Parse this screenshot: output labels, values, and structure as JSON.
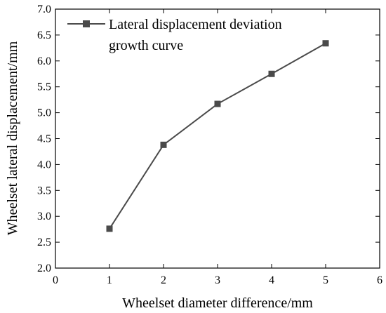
{
  "chart_data": {
    "type": "line",
    "title": "",
    "xlabel": "Wheelset diameter difference/mm",
    "ylabel": "Wheelset lateral displacement/mm",
    "xlim": [
      0,
      6
    ],
    "ylim": [
      2.0,
      7.0
    ],
    "x_ticks": [
      "0",
      "1",
      "2",
      "3",
      "4",
      "5",
      "6"
    ],
    "y_ticks": [
      "2.0",
      "2.5",
      "3.0",
      "3.5",
      "4.0",
      "4.5",
      "5.0",
      "5.5",
      "6.0",
      "6.5",
      "7.0"
    ],
    "grid": false,
    "legend_position": "top-left",
    "series": [
      {
        "name_line1": "Lateral displacement deviation",
        "name_line2": "growth curve",
        "color": "#4a4a4a",
        "marker": "square",
        "x": [
          1,
          2,
          3,
          4,
          5
        ],
        "y": [
          2.76,
          4.38,
          5.17,
          5.75,
          6.34
        ]
      }
    ]
  }
}
